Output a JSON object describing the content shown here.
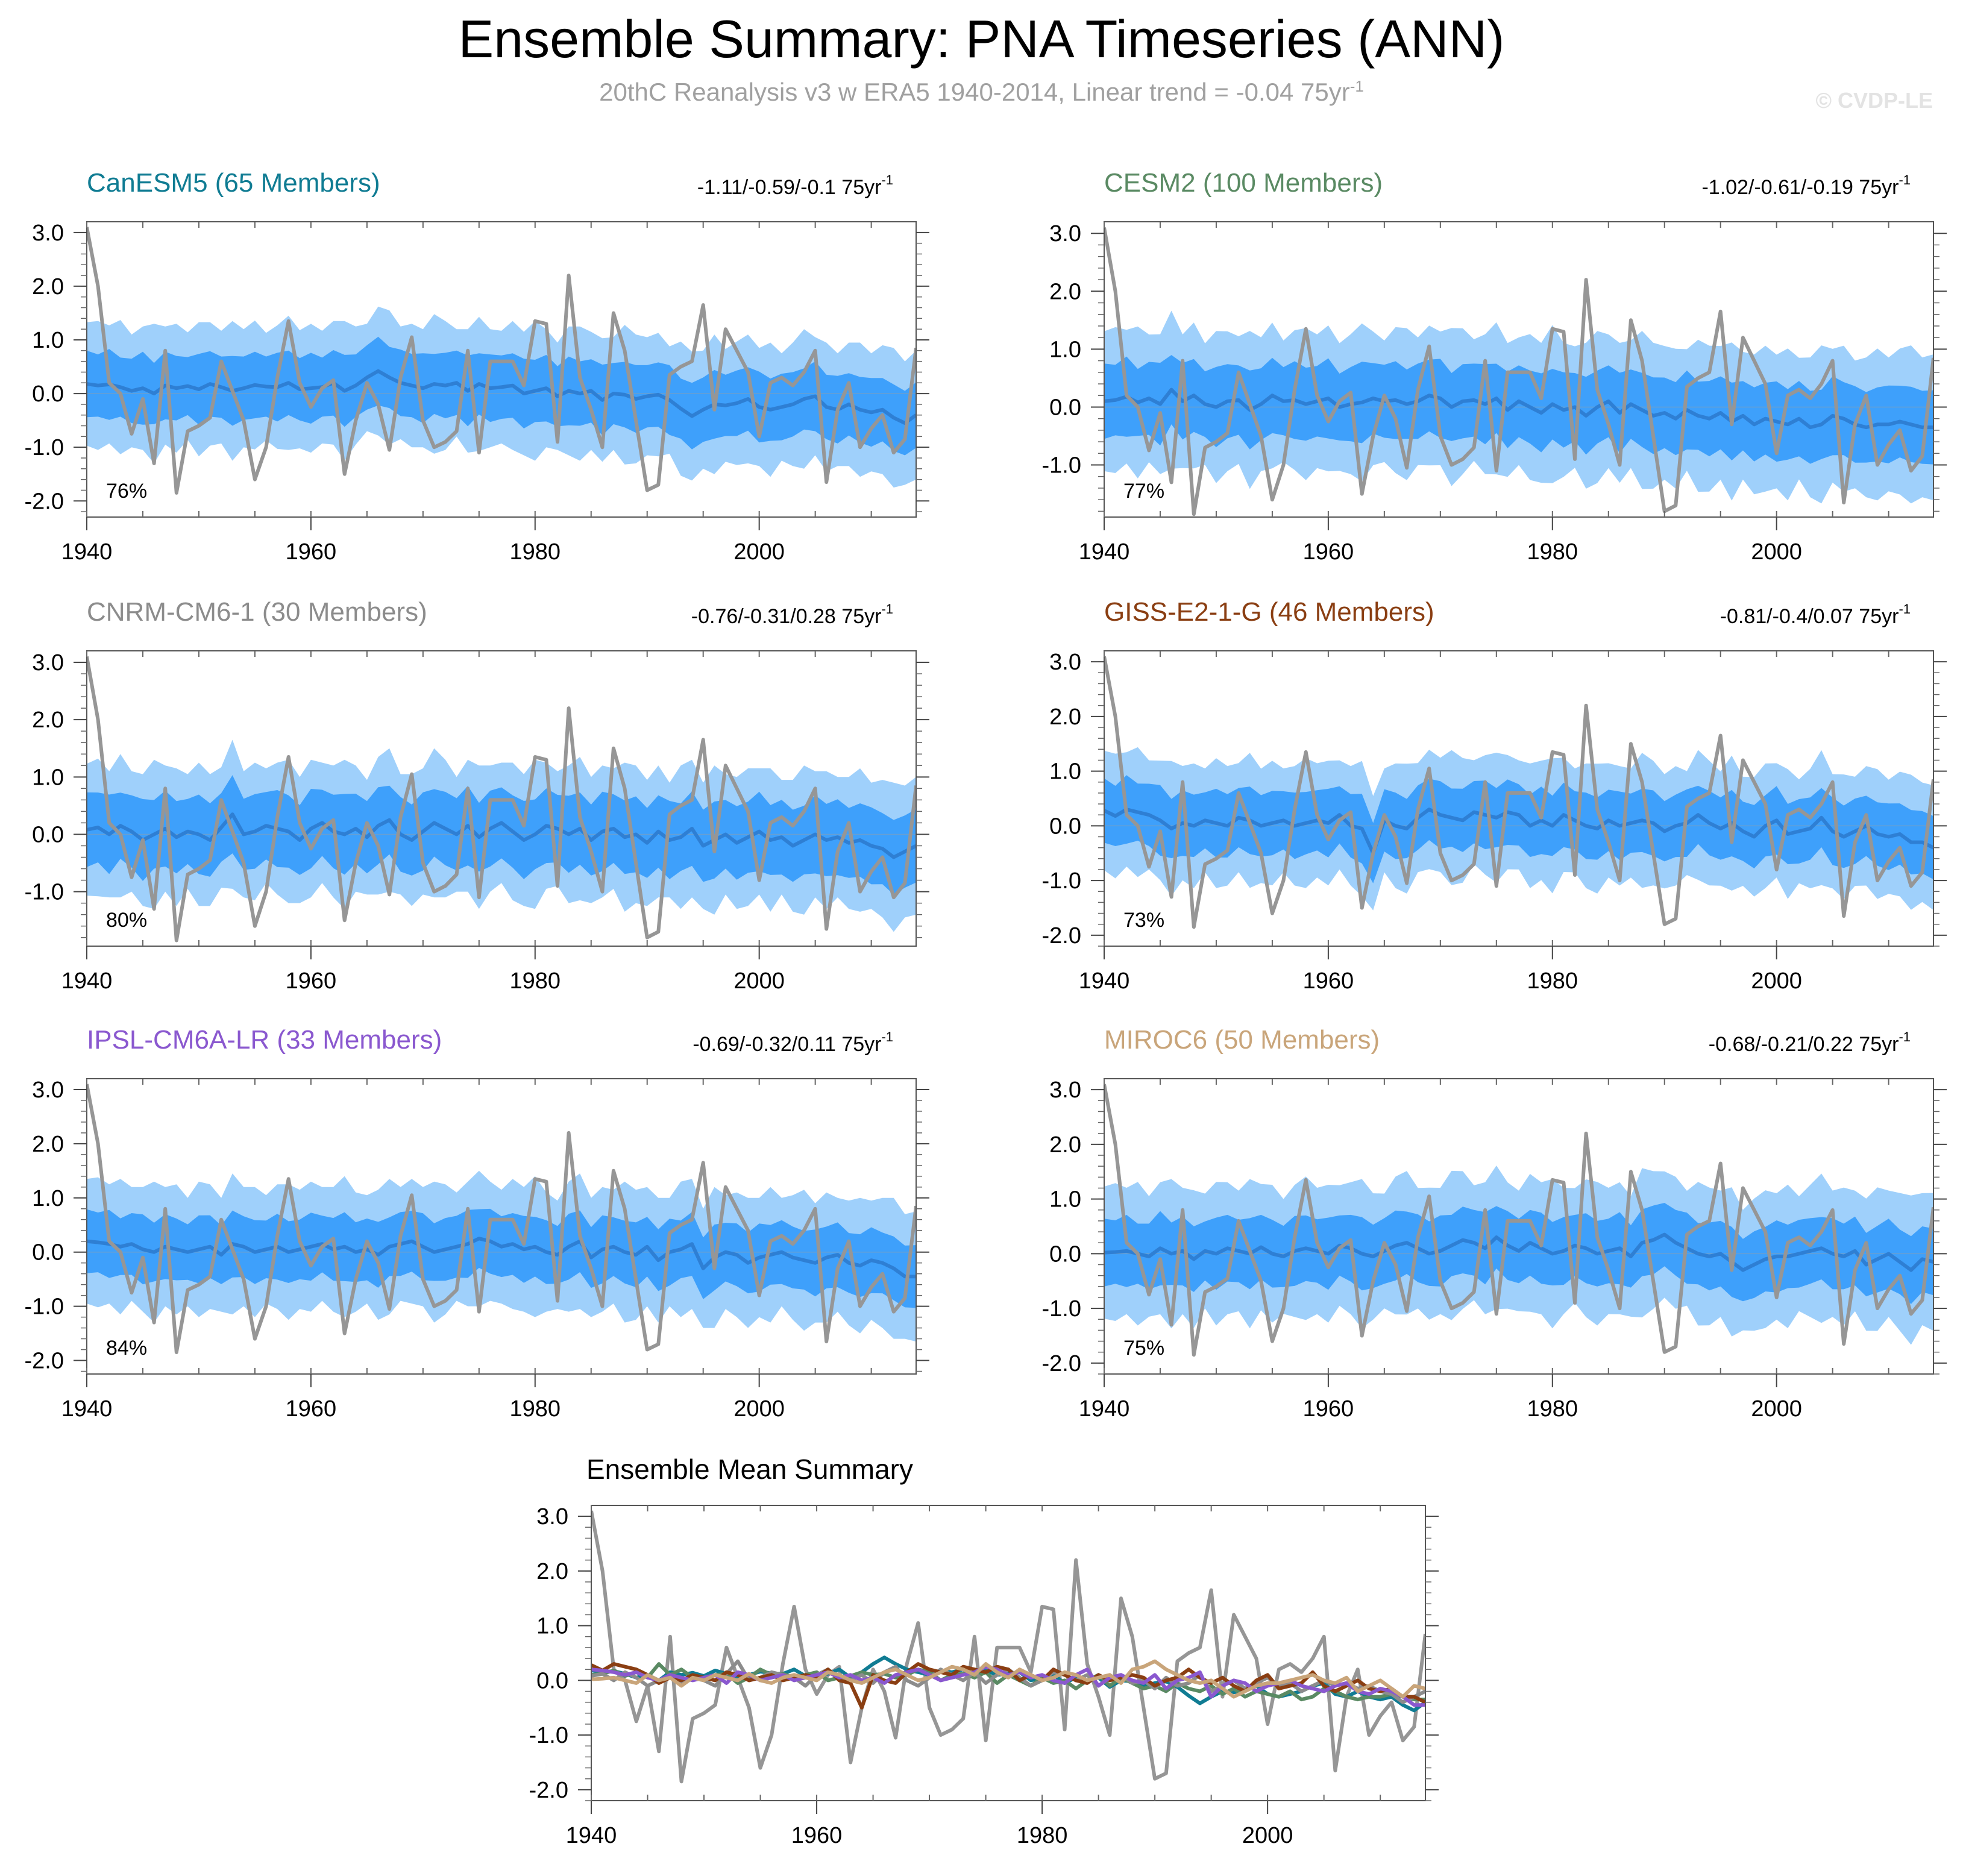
{
  "title": "Ensemble Summary: PNA Timeseries (ANN)",
  "subtitle": {
    "text": "20thC Reanalysis v3 w ERA5 1940-2014, Linear trend = -0.04 75yr",
    "sup": "-1"
  },
  "watermark": "© CVDP-LE",
  "colors": {
    "outer_band": "#9fd0fb",
    "inner_band": "#3ea0fb",
    "ens_mean": "#2e7fd4",
    "obs": "#969696"
  },
  "x_ticks": [
    "1940",
    "1960",
    "1980",
    "2000"
  ],
  "panels": [
    {
      "model": "CanESM5 (65 Members)",
      "color": "#107c93",
      "trend": "-1.11/-0.59/-0.1 75yr",
      "trend_sup": "-1",
      "pct": "76%",
      "ylim": [
        -2.3,
        3.2
      ],
      "ytick_labels": [
        "3.0",
        "2.0",
        "1.0",
        "0.0",
        "-1.0",
        "-2.0"
      ],
      "ytick_values": [
        3,
        2,
        1,
        0,
        -1,
        -2
      ]
    },
    {
      "model": "CESM2 (100 Members)",
      "color": "#5a8a63",
      "trend": "-1.02/-0.61/-0.19 75yr",
      "trend_sup": "-1",
      "pct": "77%",
      "ylim": [
        -1.9,
        3.2
      ],
      "ytick_labels": [
        "3.0",
        "2.0",
        "1.0",
        "0.0",
        "-1.0"
      ],
      "ytick_values": [
        3,
        2,
        1,
        0,
        -1
      ]
    },
    {
      "model": "CNRM-CM6-1 (30 Members)",
      "color": "#8c8c8c",
      "trend": "-0.76/-0.31/0.28 75yr",
      "trend_sup": "-1",
      "pct": "80%",
      "ylim": [
        -1.95,
        3.2
      ],
      "ytick_labels": [
        "3.0",
        "2.0",
        "1.0",
        "0.0",
        "-1.0"
      ],
      "ytick_values": [
        3,
        2,
        1,
        0,
        -1
      ]
    },
    {
      "model": "GISS-E2-1-G (46 Members)",
      "color": "#8a3e12",
      "trend": "-0.81/-0.4/0.07 75yr",
      "trend_sup": "-1",
      "pct": "73%",
      "ylim": [
        -2.2,
        3.2
      ],
      "ytick_labels": [
        "3.0",
        "2.0",
        "1.0",
        "0.0",
        "-1.0",
        "-2.0"
      ],
      "ytick_values": [
        3,
        2,
        1,
        0,
        -1,
        -2
      ]
    },
    {
      "model": "IPSL-CM6A-LR (33 Members)",
      "color": "#8a58cf",
      "trend": "-0.69/-0.32/0.11 75yr",
      "trend_sup": "-1",
      "pct": "84%",
      "ylim": [
        -2.25,
        3.2
      ],
      "ytick_labels": [
        "3.0",
        "2.0",
        "1.0",
        "0.0",
        "-1.0",
        "-2.0"
      ],
      "ytick_values": [
        3,
        2,
        1,
        0,
        -1,
        -2
      ]
    },
    {
      "model": "MIROC6 (50 Members)",
      "color": "#c9a57a",
      "trend": "-0.68/-0.21/0.22 75yr",
      "trend_sup": "-1",
      "pct": "75%",
      "ylim": [
        -2.2,
        3.2
      ],
      "ytick_labels": [
        "3.0",
        "2.0",
        "1.0",
        "0.0",
        "-1.0",
        "-2.0"
      ],
      "ytick_values": [
        3,
        2,
        1,
        0,
        -1,
        -2
      ]
    }
  ],
  "summary": {
    "title": "Ensemble Mean Summary",
    "ylim": [
      -2.2,
      3.2
    ],
    "ytick_labels": [
      "3.0",
      "2.0",
      "1.0",
      "0.0",
      "-1.0",
      "-2.0"
    ],
    "ytick_values": [
      3,
      2,
      1,
      0,
      -1,
      -2
    ]
  },
  "chart_data": {
    "type": "line",
    "years": [
      1940,
      2014
    ],
    "xlim": [
      1940,
      2014
    ],
    "observed": [
      3.1,
      2.0,
      0.2,
      0.0,
      -0.75,
      -0.1,
      -1.3,
      0.8,
      -1.85,
      -0.7,
      -0.6,
      -0.45,
      0.6,
      0.05,
      -0.5,
      -1.6,
      -1.0,
      0.3,
      1.35,
      0.2,
      -0.25,
      0.1,
      0.25,
      -1.5,
      -0.5,
      0.2,
      -0.2,
      -1.05,
      0.3,
      1.05,
      -0.5,
      -1.0,
      -0.9,
      -0.7,
      0.8,
      -1.1,
      0.6,
      0.6,
      0.6,
      0.15,
      1.35,
      1.3,
      -0.9,
      2.2,
      0.3,
      -0.3,
      -1.0,
      1.5,
      0.8,
      -0.5,
      -1.8,
      -1.7,
      0.35,
      0.5,
      0.6,
      1.65,
      -0.3,
      1.2,
      0.8,
      0.4,
      -0.8,
      0.2,
      0.3,
      0.15,
      0.4,
      0.8,
      -1.65,
      -0.3,
      0.2,
      -1.0,
      -0.65,
      -0.4,
      -1.1,
      -0.85,
      0.85
    ],
    "series": [
      {
        "name": "CanESM5",
        "mean": [
          0.18,
          0.15,
          0.17,
          0.12,
          0.05,
          0.1,
          0.0,
          0.15,
          0.1,
          0.14,
          0.08,
          0.18,
          0.12,
          0.05,
          0.1,
          0.16,
          0.13,
          0.12,
          0.2,
          0.08,
          0.1,
          0.12,
          0.2,
          0.05,
          0.15,
          0.3,
          0.42,
          0.3,
          0.2,
          0.15,
          0.1,
          0.18,
          0.15,
          0.2,
          0.05,
          0.18,
          0.1,
          0.12,
          0.15,
          0.0,
          0.05,
          0.1,
          -0.05,
          0.05,
          0.0,
          0.05,
          -0.12,
          0.0,
          -0.02,
          -0.1,
          -0.05,
          -0.02,
          -0.12,
          -0.28,
          -0.42,
          -0.3,
          -0.2,
          -0.22,
          -0.18,
          -0.1,
          -0.25,
          -0.3,
          -0.25,
          -0.2,
          -0.1,
          -0.05,
          -0.25,
          -0.3,
          -0.2,
          -0.3,
          -0.35,
          -0.3,
          -0.45,
          -0.55,
          -0.4
        ]
      },
      {
        "name": "CESM2",
        "mean": [
          0.1,
          0.12,
          0.18,
          0.08,
          0.15,
          0.05,
          0.3,
          0.1,
          0.2,
          0.05,
          0.0,
          0.1,
          0.12,
          -0.05,
          0.05,
          0.2,
          0.1,
          0.12,
          0.05,
          0.1,
          0.15,
          0.0,
          0.05,
          0.08,
          0.15,
          0.1,
          0.12,
          0.05,
          0.1,
          0.2,
          0.15,
          0.0,
          0.1,
          0.12,
          0.05,
          0.15,
          -0.05,
          0.1,
          0.0,
          -0.1,
          0.05,
          -0.05,
          0.0,
          -0.15,
          0.0,
          0.1,
          -0.1,
          0.05,
          -0.05,
          -0.15,
          -0.1,
          -0.2,
          -0.05,
          -0.15,
          -0.2,
          -0.1,
          -0.25,
          -0.15,
          -0.3,
          -0.2,
          -0.25,
          -0.3,
          -0.2,
          -0.35,
          -0.3,
          -0.15,
          -0.2,
          -0.3,
          -0.35,
          -0.3,
          -0.3,
          -0.25,
          -0.3,
          -0.35,
          -0.35
        ]
      },
      {
        "name": "CNRM-CM6-1",
        "mean": [
          0.08,
          0.12,
          0.0,
          0.15,
          0.05,
          -0.1,
          0.0,
          0.1,
          -0.05,
          0.05,
          0.0,
          -0.1,
          0.12,
          0.35,
          0.0,
          0.05,
          0.15,
          0.1,
          0.05,
          -0.1,
          0.1,
          0.2,
          0.05,
          0.0,
          0.1,
          -0.05,
          0.15,
          0.25,
          0.0,
          -0.1,
          0.05,
          0.2,
          0.1,
          0.0,
          0.15,
          -0.05,
          0.1,
          0.2,
          0.05,
          -0.1,
          0.0,
          0.15,
          0.1,
          0.0,
          0.1,
          -0.1,
          0.05,
          0.1,
          -0.05,
          0.0,
          -0.15,
          0.05,
          -0.1,
          -0.05,
          0.1,
          -0.2,
          -0.1,
          0.0,
          -0.15,
          -0.05,
          0.05,
          -0.1,
          -0.05,
          -0.2,
          -0.1,
          0.0,
          -0.1,
          -0.05,
          -0.15,
          -0.1,
          -0.2,
          -0.25,
          -0.4,
          -0.3,
          -0.2
        ]
      },
      {
        "name": "GISS-E2-1-G",
        "mean": [
          0.28,
          0.18,
          0.3,
          0.25,
          0.2,
          0.1,
          -0.05,
          0.05,
          0.0,
          0.1,
          0.05,
          0.0,
          0.15,
          0.1,
          0.0,
          0.05,
          0.1,
          0.0,
          0.05,
          0.1,
          0.05,
          0.2,
          0.0,
          -0.05,
          -0.5,
          0.1,
          0.0,
          -0.05,
          0.15,
          0.3,
          0.2,
          0.15,
          0.1,
          0.25,
          0.2,
          0.15,
          0.25,
          0.2,
          0.0,
          0.1,
          0.0,
          0.2,
          0.1,
          0.0,
          -0.05,
          0.1,
          0.0,
          0.05,
          0.1,
          0.05,
          -0.1,
          0.0,
          0.05,
          0.2,
          0.05,
          -0.05,
          0.05,
          -0.1,
          -0.2,
          0.0,
          0.1,
          -0.15,
          -0.1,
          -0.05,
          0.15,
          -0.1,
          -0.2,
          -0.1,
          0.0,
          -0.15,
          -0.2,
          -0.15,
          -0.3,
          -0.3,
          -0.4
        ]
      },
      {
        "name": "IPSL-CM6A-LR",
        "mean": [
          0.2,
          0.18,
          0.15,
          0.1,
          0.15,
          0.05,
          0.0,
          0.1,
          0.05,
          0.0,
          0.05,
          0.1,
          -0.05,
          0.15,
          0.1,
          0.0,
          0.05,
          0.1,
          0.0,
          0.05,
          0.1,
          0.15,
          0.05,
          0.1,
          0.0,
          0.05,
          -0.05,
          0.1,
          0.15,
          0.2,
          0.1,
          0.0,
          0.05,
          0.1,
          0.15,
          0.25,
          0.2,
          0.1,
          0.15,
          0.05,
          0.1,
          0.0,
          -0.05,
          0.1,
          0.2,
          -0.1,
          0.05,
          0.1,
          0.0,
          -0.05,
          0.1,
          -0.15,
          0.0,
          0.05,
          0.15,
          -0.3,
          -0.1,
          0.0,
          -0.05,
          -0.2,
          -0.1,
          -0.05,
          0.0,
          -0.1,
          -0.15,
          -0.2,
          -0.1,
          -0.05,
          -0.2,
          -0.25,
          -0.15,
          -0.2,
          -0.3,
          -0.45,
          -0.45
        ]
      },
      {
        "name": "MIROC6",
        "mean": [
          0.02,
          0.03,
          0.05,
          0.0,
          -0.05,
          0.1,
          0.0,
          0.05,
          -0.1,
          0.05,
          0.0,
          0.1,
          0.05,
          0.0,
          0.12,
          0.0,
          -0.05,
          0.05,
          0.1,
          0.05,
          0.0,
          0.15,
          0.1,
          0.0,
          -0.05,
          0.05,
          0.15,
          0.2,
          0.1,
          0.0,
          0.05,
          0.15,
          0.25,
          0.2,
          0.1,
          0.3,
          0.15,
          0.05,
          0.2,
          0.1,
          0.0,
          0.05,
          0.15,
          0.1,
          0.0,
          0.05,
          0.1,
          -0.05,
          0.2,
          0.25,
          0.35,
          0.2,
          0.1,
          0.0,
          -0.05,
          0.0,
          -0.15,
          -0.3,
          -0.2,
          -0.1,
          -0.05,
          -0.05,
          0.0,
          0.05,
          0.1,
          0.0,
          -0.05,
          0.05,
          -0.2,
          -0.1,
          0.0,
          -0.15,
          -0.3,
          -0.1,
          -0.15
        ]
      }
    ],
    "band_outer_halfwidth": [
      1.15,
      1.2,
      1.1,
      1.25,
      1.05,
      1.15,
      1.3,
      1.1,
      1.2,
      1.0,
      1.25,
      1.15,
      1.05,
      1.3,
      1.1,
      1.2,
      1.0,
      1.15,
      1.25,
      1.1,
      1.2,
      1.05,
      1.15,
      1.3,
      1.1,
      1.0,
      1.2,
      1.25,
      1.05,
      1.15,
      1.1,
      1.3,
      1.2,
      1.0,
      1.15,
      1.25,
      1.1,
      1.05,
      1.2,
      1.15,
      1.3,
      1.1,
      1.0,
      1.2,
      1.25,
      1.1,
      1.15,
      1.05,
      1.3,
      1.2,
      1.1,
      1.15,
      1.0,
      1.25,
      1.2,
      1.1,
      1.3,
      1.05,
      1.15,
      1.2,
      1.1,
      1.25,
      1.0,
      1.15,
      1.3,
      1.1,
      1.2,
      1.05,
      1.15,
      1.25,
      1.1,
      1.2,
      1.3,
      1.15,
      1.2
    ],
    "band_inner_halfwidth": [
      0.62,
      0.58,
      0.66,
      0.55,
      0.6,
      0.68,
      0.57,
      0.63,
      0.6,
      0.54,
      0.66,
      0.61,
      0.57,
      0.65,
      0.59,
      0.62,
      0.56,
      0.64,
      0.6,
      0.58,
      0.66,
      0.55,
      0.61,
      0.67,
      0.58,
      0.6,
      0.64,
      0.57,
      0.62,
      0.59,
      0.65,
      0.56,
      0.61,
      0.6,
      0.66,
      0.57,
      0.63,
      0.59,
      0.6,
      0.65,
      0.58,
      0.62,
      0.56,
      0.64,
      0.6,
      0.59,
      0.66,
      0.57,
      0.61,
      0.63,
      0.58,
      0.6,
      0.65,
      0.56,
      0.62,
      0.6,
      0.64,
      0.57,
      0.61,
      0.59,
      0.66,
      0.58,
      0.62,
      0.6,
      0.57,
      0.65,
      0.6,
      0.63,
      0.58,
      0.61,
      0.64,
      0.59,
      0.62,
      0.6,
      0.61
    ]
  }
}
